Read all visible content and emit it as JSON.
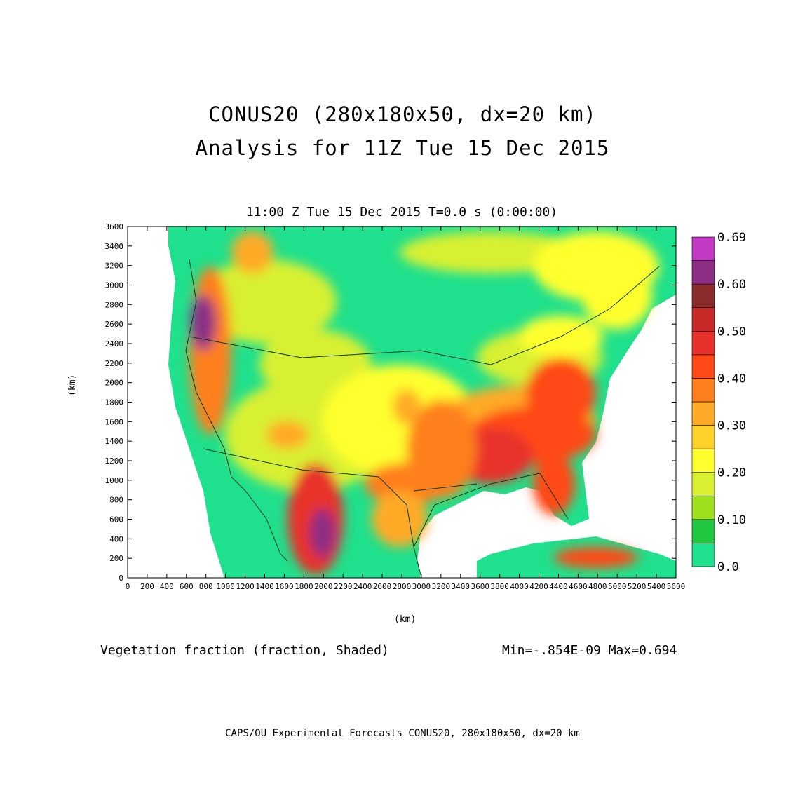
{
  "title_line1": "CONUS20 (280x180x50, dx=20 km)",
  "title_line2": "Analysis for 11Z Tue 15 Dec 2015",
  "plot_time": "11:00 Z Tue 15 Dec 2015   T=0.0 s (0:00:00)",
  "x_axis_label": "(km)",
  "y_axis_label": "(km)",
  "x_ticks": [
    "0",
    "200",
    "400",
    "600",
    "800",
    "1000",
    "1200",
    "1400",
    "1600",
    "1800",
    "2000",
    "2200",
    "2400",
    "2600",
    "2800",
    "3000",
    "3200",
    "3400",
    "3600",
    "3800",
    "4000",
    "4200",
    "4400",
    "4600",
    "4800",
    "5000",
    "5200",
    "5400",
    "5600"
  ],
  "y_ticks": [
    "0",
    "200",
    "400",
    "600",
    "800",
    "1000",
    "1200",
    "1400",
    "1600",
    "1800",
    "2000",
    "2200",
    "2400",
    "2600",
    "2800",
    "3000",
    "3200",
    "3400",
    "3600"
  ],
  "colorbar": {
    "colors": [
      "#1fe08c",
      "#20c840",
      "#9ee01c",
      "#d8f030",
      "#ffff2e",
      "#ffd22a",
      "#ffaa28",
      "#ff7f1e",
      "#ff4a18",
      "#e8302c",
      "#c82a2a",
      "#8b2c2c",
      "#8b2e84",
      "#c23ac4"
    ],
    "labels": [
      "0.0",
      "0.10",
      "0.20",
      "0.30",
      "0.40",
      "0.50",
      "0.60",
      "0.69"
    ]
  },
  "field_label": "Vegetation fraction (fraction, Shaded)",
  "min_max": "Min=-.854E-09 Max=0.694",
  "footer": "CAPS/OU Experimental Forecasts  CONUS20, 280x180x50, dx=20 km"
}
